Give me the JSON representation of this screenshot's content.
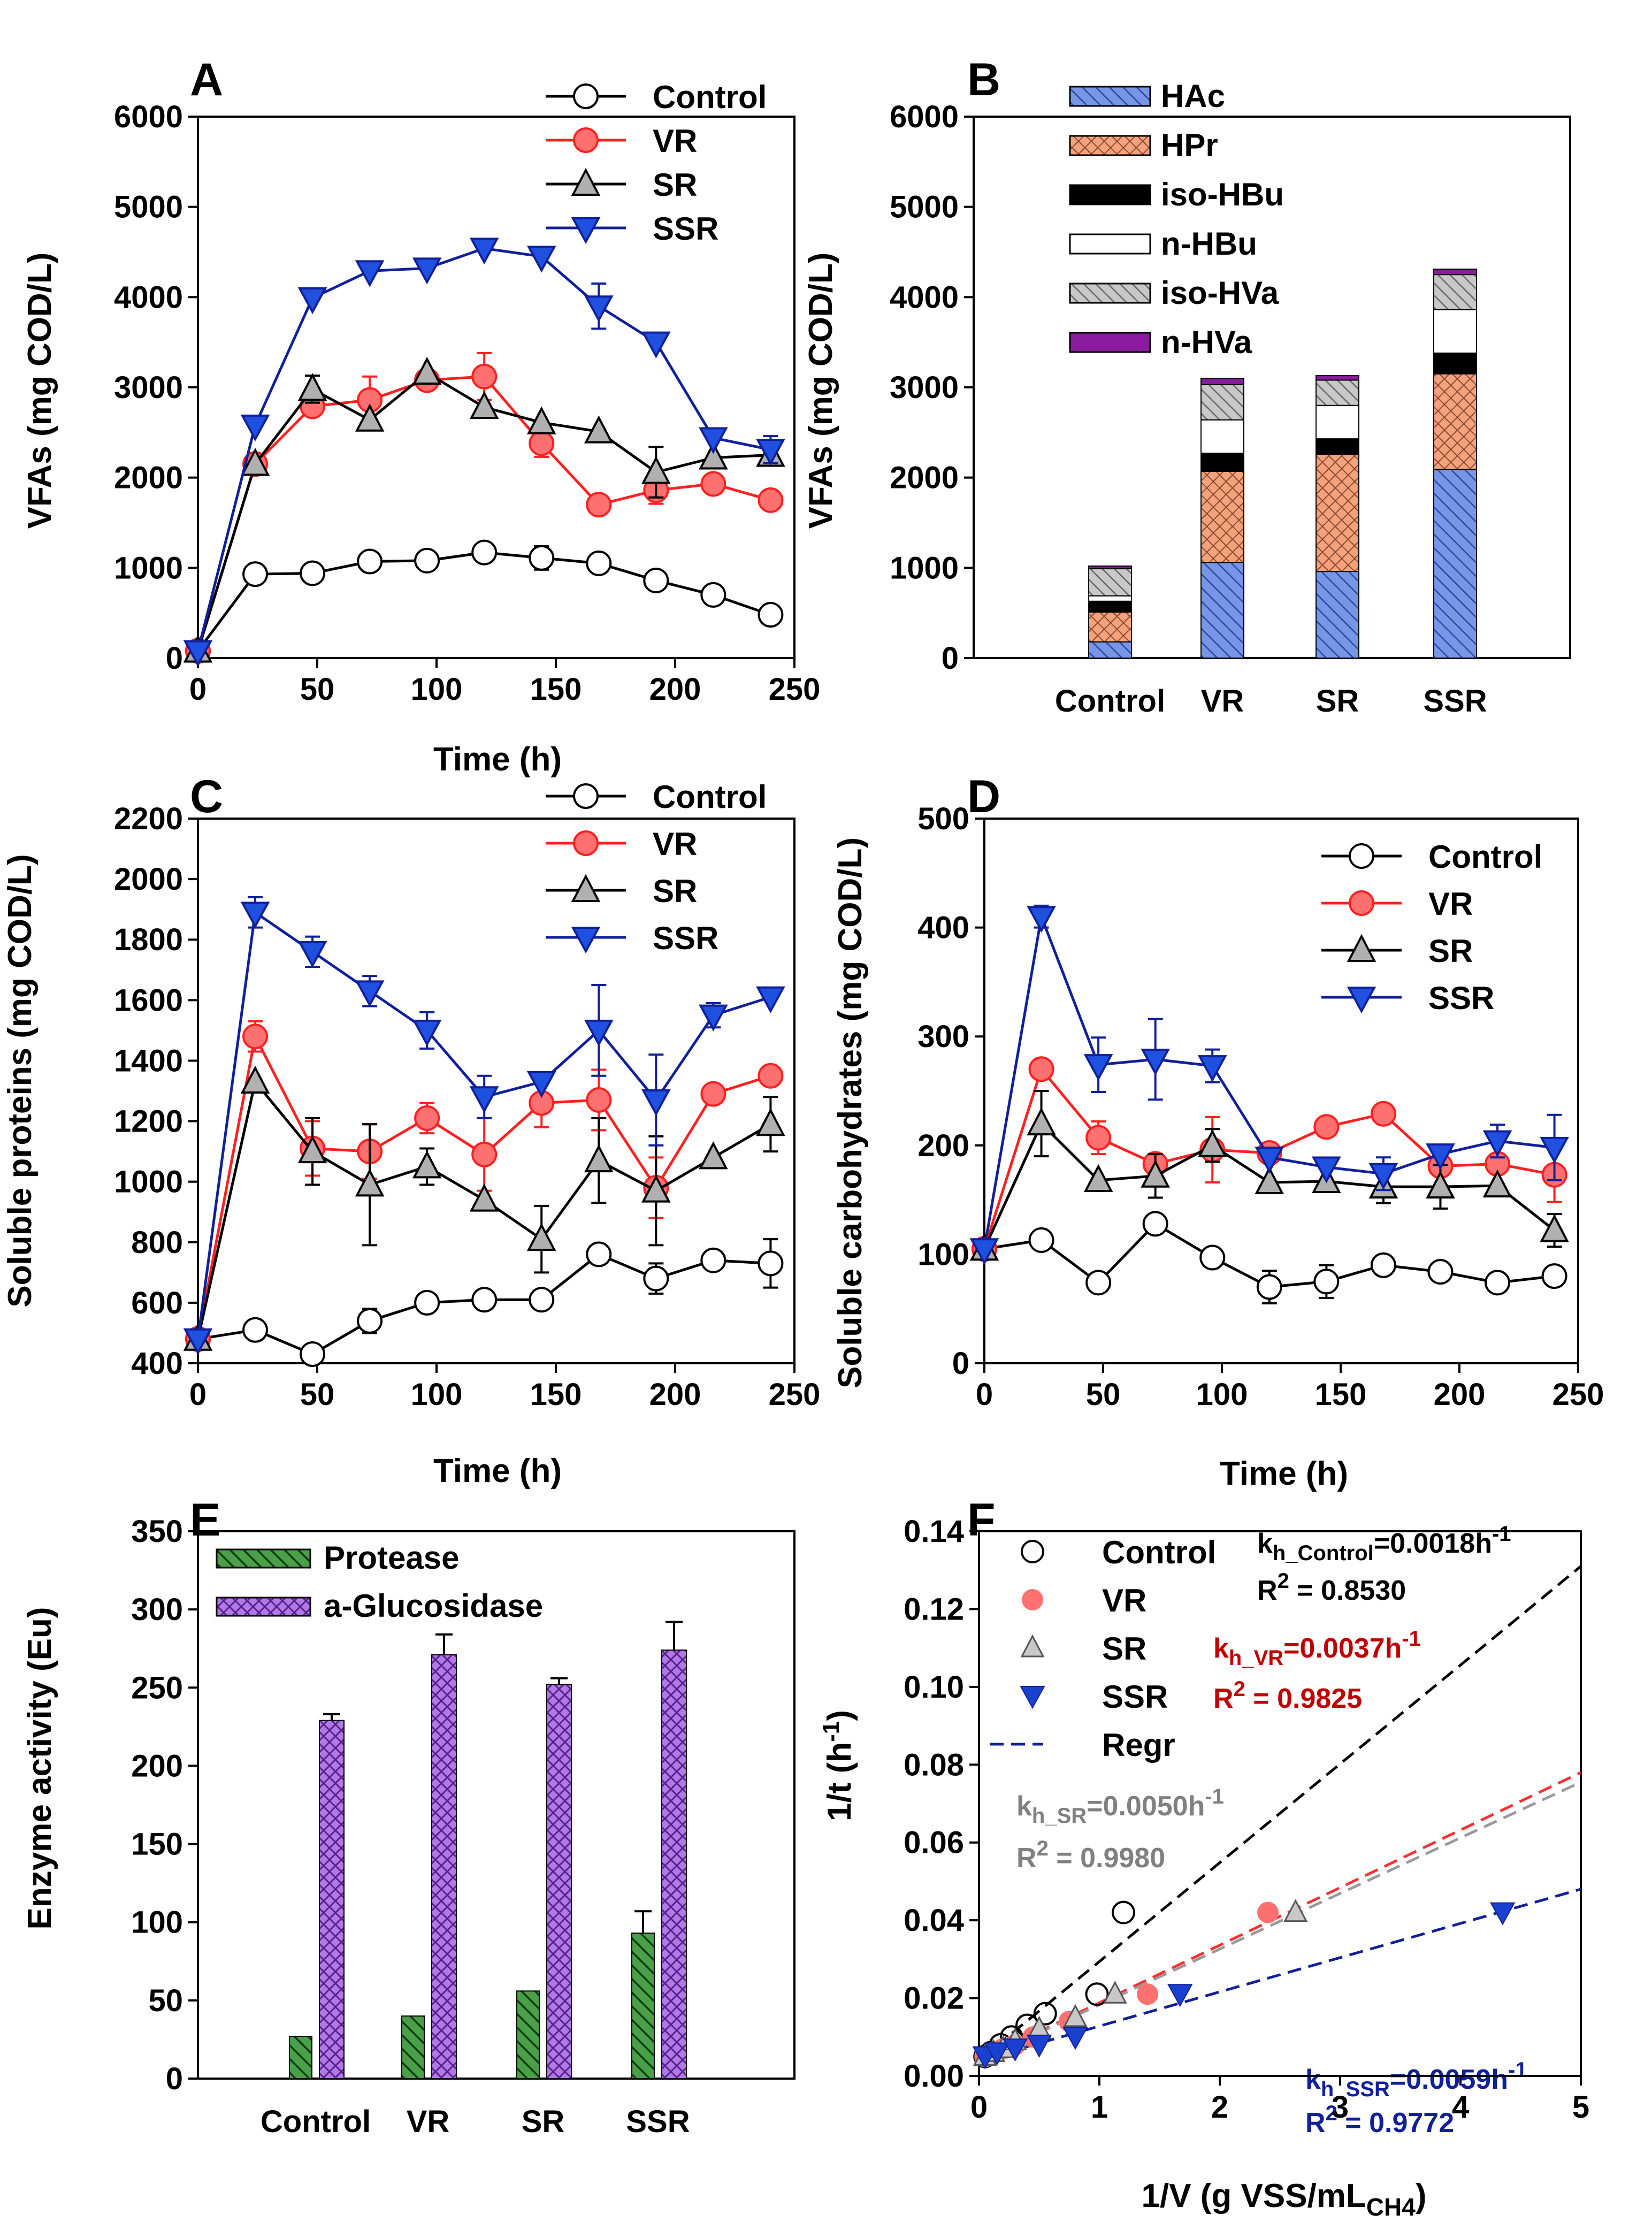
{
  "colors": {
    "Control": "#000000",
    "VR": "#ff2020",
    "SR": "#000000",
    "SSR": "#10209a"
  },
  "chart_data": [
    {
      "id": "A",
      "panel_label": "A",
      "type": "line",
      "xlabel": "Time (h)",
      "ylabel": "VFAs (mg COD/L)",
      "xlim": [
        0,
        250
      ],
      "ylim": [
        0,
        6000
      ],
      "xticks": [
        "0",
        "50",
        "100",
        "150",
        "200",
        "250"
      ],
      "yticks": [
        "0",
        "1000",
        "2000",
        "3000",
        "4000",
        "5000",
        "6000"
      ],
      "x": [
        0,
        24,
        48,
        72,
        96,
        120,
        144,
        168,
        192,
        216,
        240
      ],
      "series": [
        {
          "name": "Control",
          "values": [
            80,
            930,
            940,
            1070,
            1080,
            1170,
            1110,
            1050,
            860,
            700,
            480
          ],
          "errors": [
            0,
            0,
            0,
            0,
            0,
            0,
            130,
            0,
            0,
            0,
            0
          ]
        },
        {
          "name": "VR",
          "values": [
            80,
            2150,
            2790,
            2860,
            3080,
            3120,
            2380,
            1700,
            1860,
            1930,
            1750
          ],
          "errors": [
            0,
            0,
            0,
            260,
            0,
            260,
            150,
            0,
            150,
            0,
            0
          ]
        },
        {
          "name": "SR",
          "values": [
            80,
            2150,
            2980,
            2640,
            3160,
            2780,
            2610,
            2510,
            2060,
            2220,
            2250
          ],
          "errors": [
            0,
            0,
            150,
            0,
            0,
            0,
            0,
            0,
            280,
            0,
            0
          ]
        },
        {
          "name": "SSR",
          "values": [
            80,
            2580,
            3990,
            4290,
            4320,
            4540,
            4450,
            3900,
            3500,
            2440,
            2310
          ],
          "errors": [
            0,
            0,
            0,
            0,
            0,
            0,
            0,
            250,
            0,
            0,
            150
          ]
        }
      ],
      "legend": [
        "Control",
        "VR",
        "SR",
        "SSR"
      ]
    },
    {
      "id": "B",
      "panel_label": "B",
      "type": "stacked-bar",
      "ylabel": "VFAs (mg COD/L)",
      "ylim": [
        0,
        6000
      ],
      "yticks": [
        "0",
        "1000",
        "2000",
        "3000",
        "4000",
        "5000",
        "6000"
      ],
      "categories": [
        "Control",
        "VR",
        "SR",
        "SSR"
      ],
      "series": [
        {
          "name": "HAc",
          "values": [
            180,
            1060,
            960,
            2090
          ]
        },
        {
          "name": "HPr",
          "values": [
            330,
            1010,
            1300,
            1060
          ]
        },
        {
          "name": "iso-HBu",
          "values": [
            120,
            200,
            170,
            230
          ]
        },
        {
          "name": "n-HBu",
          "values": [
            60,
            370,
            370,
            480
          ]
        },
        {
          "name": "iso-HVa",
          "values": [
            300,
            390,
            280,
            390
          ]
        },
        {
          "name": "n-HVa",
          "values": [
            30,
            70,
            50,
            60
          ]
        }
      ]
    },
    {
      "id": "C",
      "panel_label": "C",
      "type": "line",
      "xlabel": "Time (h)",
      "ylabel": "Soluble proteins (mg COD/L)",
      "xlim": [
        0,
        250
      ],
      "ylim": [
        400,
        2200
      ],
      "xticks": [
        "0",
        "50",
        "100",
        "150",
        "200",
        "250"
      ],
      "yticks": [
        "400",
        "600",
        "800",
        "1000",
        "1200",
        "1400",
        "1600",
        "1800",
        "2000",
        "2200"
      ],
      "x": [
        0,
        24,
        48,
        72,
        96,
        120,
        144,
        168,
        192,
        216,
        240
      ],
      "series": [
        {
          "name": "Control",
          "values": [
            480,
            510,
            430,
            540,
            600,
            610,
            610,
            760,
            680,
            740,
            730
          ],
          "errors": [
            0,
            0,
            0,
            40,
            0,
            0,
            0,
            0,
            50,
            0,
            80
          ]
        },
        {
          "name": "VR",
          "values": [
            480,
            1480,
            1110,
            1100,
            1210,
            1090,
            1260,
            1270,
            980,
            1290,
            1350
          ],
          "errors": [
            0,
            50,
            90,
            90,
            50,
            120,
            80,
            100,
            100,
            0,
            0
          ]
        },
        {
          "name": "SR",
          "values": [
            480,
            1330,
            1100,
            990,
            1050,
            940,
            810,
            1070,
            970,
            1080,
            1190
          ],
          "errors": [
            0,
            0,
            110,
            200,
            60,
            0,
            110,
            140,
            180,
            0,
            90
          ]
        },
        {
          "name": "SSR",
          "values": [
            480,
            1890,
            1760,
            1630,
            1500,
            1280,
            1330,
            1500,
            1270,
            1550,
            1610
          ],
          "errors": [
            0,
            50,
            50,
            50,
            60,
            70,
            0,
            150,
            150,
            40,
            0
          ]
        }
      ],
      "legend": [
        "Control",
        "VR",
        "SR",
        "SSR"
      ]
    },
    {
      "id": "D",
      "panel_label": "D",
      "type": "line",
      "xlabel": "Time (h)",
      "ylabel": "Soluble carbohydrates (mg COD/L)",
      "xlim": [
        0,
        250
      ],
      "ylim": [
        0,
        500
      ],
      "xticks": [
        "0",
        "50",
        "100",
        "150",
        "200",
        "250"
      ],
      "yticks": [
        "0",
        "100",
        "200",
        "300",
        "400",
        "500"
      ],
      "x": [
        0,
        24,
        48,
        72,
        96,
        120,
        144,
        168,
        192,
        216,
        240
      ],
      "series": [
        {
          "name": "Control",
          "values": [
            105,
            113,
            74,
            128,
            97,
            70,
            75,
            90,
            84,
            74,
            80
          ],
          "errors": [
            0,
            0,
            0,
            0,
            0,
            15,
            15,
            0,
            0,
            0,
            0
          ]
        },
        {
          "name": "VR",
          "values": [
            105,
            270,
            207,
            183,
            196,
            193,
            217,
            229,
            181,
            183,
            173
          ],
          "errors": [
            0,
            0,
            15,
            0,
            30,
            0,
            0,
            0,
            0,
            0,
            25
          ]
        },
        {
          "name": "SR",
          "values": [
            105,
            220,
            168,
            172,
            200,
            166,
            167,
            162,
            162,
            163,
            122
          ],
          "errors": [
            0,
            30,
            0,
            20,
            15,
            0,
            0,
            15,
            20,
            0,
            15
          ]
        },
        {
          "name": "SSR",
          "values": [
            105,
            410,
            274,
            279,
            273,
            189,
            180,
            174,
            192,
            204,
            198
          ],
          "errors": [
            0,
            10,
            25,
            37,
            15,
            0,
            0,
            15,
            0,
            15,
            30
          ]
        }
      ],
      "legend": [
        "Control",
        "VR",
        "SR",
        "SSR"
      ]
    },
    {
      "id": "E",
      "panel_label": "E",
      "type": "bar",
      "ylabel": "Enzyme activity (Eu)",
      "ylim": [
        0,
        350
      ],
      "yticks": [
        "0",
        "50",
        "100",
        "150",
        "200",
        "250",
        "300",
        "350"
      ],
      "categories": [
        "Control",
        "VR",
        "SR",
        "SSR"
      ],
      "series": [
        {
          "name": "Protease",
          "values": [
            27,
            40,
            56,
            93
          ],
          "errors": [
            0,
            0,
            0,
            14
          ]
        },
        {
          "name": "a-Glucosidase",
          "values": [
            229,
            271,
            252,
            274
          ],
          "errors": [
            4,
            13,
            4,
            18
          ]
        }
      ]
    },
    {
      "id": "F",
      "panel_label": "F",
      "type": "scatter",
      "xlabel_main": "1/V (g VSS/mL",
      "xlabel_sub": "CH4",
      "xlabel_end": ")",
      "ylabel_main": "1/t (h",
      "ylabel_sup": "-1",
      "ylabel_end": ")",
      "xlim": [
        0,
        5
      ],
      "ylim": [
        0,
        0.14
      ],
      "xticks": [
        "0",
        "1",
        "2",
        "3",
        "4",
        "5"
      ],
      "yticks": [
        "0.00",
        "0.02",
        "0.04",
        "0.06",
        "0.08",
        "0.10",
        "0.12",
        "0.14"
      ],
      "series": [
        {
          "name": "Control",
          "x": [
            0.05,
            0.1,
            0.18,
            0.27,
            0.4,
            0.55,
            0.98,
            1.2
          ],
          "y": [
            0.005,
            0.006,
            0.008,
            0.01,
            0.013,
            0.016,
            0.021,
            0.042
          ]
        },
        {
          "name": "VR",
          "x": [
            0.05,
            0.12,
            0.2,
            0.3,
            0.45,
            0.75,
            1.4,
            2.4
          ],
          "y": [
            0.005,
            0.006,
            0.007,
            0.008,
            0.01,
            0.014,
            0.021,
            0.042
          ]
        },
        {
          "name": "SR",
          "x": [
            0.05,
            0.12,
            0.2,
            0.3,
            0.5,
            0.8,
            1.13,
            2.63
          ],
          "y": [
            0.005,
            0.006,
            0.007,
            0.009,
            0.012,
            0.015,
            0.021,
            0.042
          ]
        },
        {
          "name": "SSR",
          "x": [
            0.05,
            0.15,
            0.3,
            0.5,
            0.8,
            1.67,
            4.35
          ],
          "y": [
            0.005,
            0.006,
            0.007,
            0.008,
            0.01,
            0.021,
            0.042
          ]
        }
      ],
      "regression": [
        {
          "name": "Control",
          "x0": 0,
          "y0": 0.004,
          "x1": 5,
          "y1": 0.131,
          "color": "#000000"
        },
        {
          "name": "VR",
          "x0": 0,
          "y0": 0.004,
          "x1": 5,
          "y1": 0.078,
          "color": "#ff3030"
        },
        {
          "name": "SR",
          "x0": 0,
          "y0": 0.004,
          "x1": 5,
          "y1": 0.0755,
          "color": "#999999"
        },
        {
          "name": "SSR",
          "x0": 0,
          "y0": 0.004,
          "x1": 5,
          "y1": 0.048,
          "color": "#10209a"
        }
      ],
      "legend": [
        "Control",
        "VR",
        "SR",
        "SSR",
        "Regr"
      ],
      "annotations": [
        {
          "key": "control",
          "k": "k",
          "sub": "h_Control",
          "rest": "=0.0018h",
          "sup": "-1",
          "r2": "R",
          "r2sup": "2",
          "r2val": " = 0.8530",
          "color": "#000000"
        },
        {
          "key": "vr",
          "k": "k",
          "sub": "h_VR",
          "rest": "=0.0037h",
          "sup": "-1",
          "r2": "R",
          "r2sup": "2",
          "r2val": " = 0.9825",
          "color": "#c00000"
        },
        {
          "key": "sr",
          "k": "k",
          "sub": "h_SR",
          "rest": "=0.0050h",
          "sup": "-1",
          "r2": "R",
          "r2sup": "2",
          "r2val": " = 0.9980",
          "color": "#808080"
        },
        {
          "key": "ssr",
          "k": "k",
          "sub": "h_SSR",
          "rest": "=0.0059h",
          "sup": "-1",
          "r2": "R",
          "r2sup": "2",
          "r2val": " = 0.9772",
          "color": "#10209a"
        }
      ]
    }
  ]
}
